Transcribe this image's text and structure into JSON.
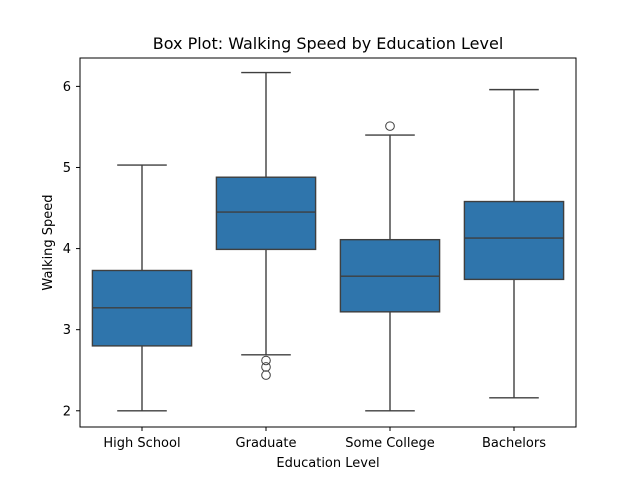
{
  "chart_data": {
    "type": "box",
    "title": "Box Plot: Walking Speed by Education Level",
    "xlabel": "Education Level",
    "ylabel": "Walking Speed",
    "categories": [
      "High School",
      "Graduate",
      "Some College",
      "Bachelors"
    ],
    "yticks": [
      2,
      3,
      4,
      5,
      6
    ],
    "ylim": [
      1.8,
      6.35
    ],
    "grid": false,
    "box_color": "#2f75ac",
    "line_color": "#3f3f3f",
    "boxes": [
      {
        "category": "High School",
        "whisker_low": 2.0,
        "q1": 2.8,
        "median": 3.27,
        "q3": 3.73,
        "whisker_high": 5.03,
        "outliers": []
      },
      {
        "category": "Graduate",
        "whisker_low": 2.69,
        "q1": 3.99,
        "median": 4.45,
        "q3": 4.88,
        "whisker_high": 6.17,
        "outliers": [
          2.62,
          2.54,
          2.44
        ]
      },
      {
        "category": "Some College",
        "whisker_low": 2.0,
        "q1": 3.22,
        "median": 3.66,
        "q3": 4.11,
        "whisker_high": 5.4,
        "outliers": [
          5.51
        ]
      },
      {
        "category": "Bachelors",
        "whisker_low": 2.16,
        "q1": 3.62,
        "median": 4.13,
        "q3": 4.58,
        "whisker_high": 5.96,
        "outliers": []
      }
    ]
  }
}
